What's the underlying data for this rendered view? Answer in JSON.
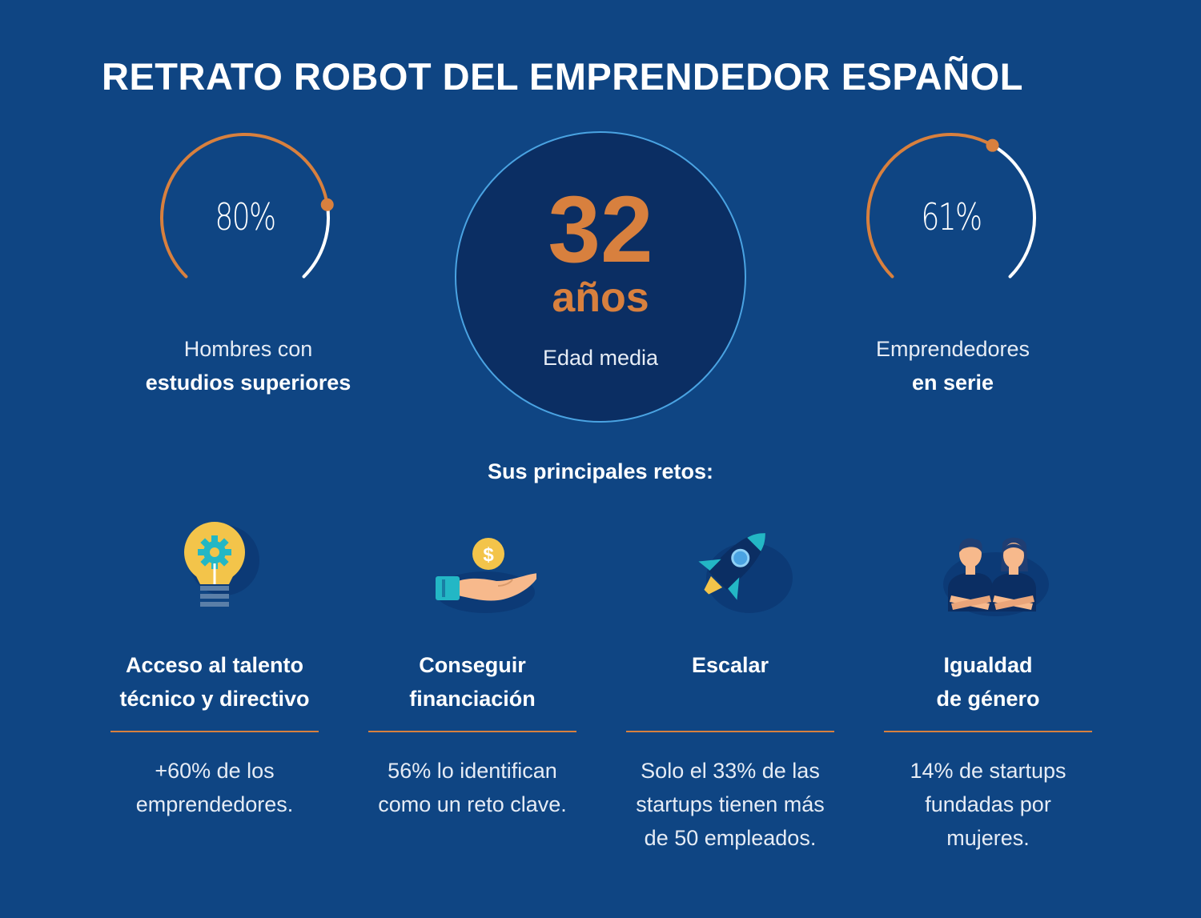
{
  "title": "RETRATO ROBOT DEL EMPRENDEDOR ESPAÑOL",
  "colors": {
    "background": "#0f4583",
    "accent": "#d8803e",
    "circle_fill": "#0b2e63",
    "circle_border": "#4aa3e2"
  },
  "stats": {
    "left": {
      "value": "80%",
      "fraction": 0.8,
      "caption_light": "Hombres con",
      "caption_bold": "estudios superiores"
    },
    "center": {
      "number": "32",
      "unit": "años",
      "label": "Edad media"
    },
    "right": {
      "value": "61%",
      "fraction": 0.61,
      "caption_light": "Emprendedores",
      "caption_bold": "en serie"
    }
  },
  "challenges_heading": "Sus principales retos:",
  "challenges": [
    {
      "icon": "lightbulb-gear-icon",
      "title_line1": "Acceso al talento",
      "title_line2": "técnico y directivo",
      "desc_line1": "+60% de los",
      "desc_line2": "emprendedores.",
      "desc_line3": ""
    },
    {
      "icon": "hand-coin-icon",
      "title_line1": "Conseguir",
      "title_line2": "financiación",
      "desc_line1": "56% lo identifican",
      "desc_line2": "como un reto clave.",
      "desc_line3": ""
    },
    {
      "icon": "rocket-icon",
      "title_line1": "Escalar",
      "title_line2": "",
      "desc_line1": "Solo el 33% de las",
      "desc_line2": "startups tienen más",
      "desc_line3": "de 50 empleados."
    },
    {
      "icon": "man-woman-icon",
      "title_line1": "Igualdad",
      "title_line2": "de género",
      "desc_line1": "14% de startups",
      "desc_line2": "fundadas por",
      "desc_line3": "mujeres."
    }
  ]
}
